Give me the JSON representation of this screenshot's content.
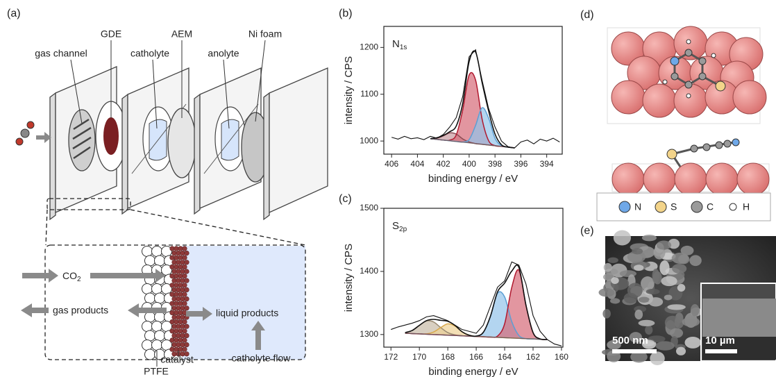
{
  "panel_labels": [
    "(a)",
    "(b)",
    "(c)",
    "(d)",
    "(e)"
  ],
  "diagram": {
    "parts": [
      "gas channel",
      "GDE",
      "catholyte",
      "AEM",
      "anolyte",
      "Ni foam"
    ],
    "inlet": {
      "text": "CO",
      "subscript": "2"
    },
    "gas_products": "gas products",
    "liquid_products": "liquid products",
    "flow": "catholyte flow",
    "catalyst": "catalyst",
    "ptfe": "PTFE"
  },
  "chart_data": [
    {
      "type": "line",
      "annotation": {
        "text": "N",
        "subscript": "1s"
      },
      "x_label": "binding energy / eV",
      "y_label": "intensity / CPS",
      "xlim": [
        406.6,
        392.8
      ],
      "ylim": [
        972,
        1245
      ],
      "xticks": [
        406,
        404,
        402,
        400,
        398,
        396,
        394
      ],
      "yticks": [
        1000,
        1100,
        1200
      ],
      "background": {
        "color": "#6e5a5e",
        "x": [
          403,
          402.5,
          402,
          401.5,
          401,
          400.5,
          400,
          399.5,
          399,
          398.5,
          398,
          397.5,
          397,
          396.5
        ],
        "values": [
          1005,
          1003.5,
          1002,
          1000.5,
          999,
          997.5,
          996,
          994.5,
          993,
          991.5,
          990,
          988.5,
          987,
          985.5
        ]
      },
      "series": [
        {
          "color": "#8a4a52",
          "fill": "#c79aa0",
          "x": [
            403,
            402.5,
            402,
            401.5,
            401,
            400.5,
            400,
            399.5,
            399,
            398.5,
            398,
            397.5,
            397,
            396.5
          ],
          "values": [
            1005,
            1006,
            1011,
            1017.5,
            1015,
            1004.5,
            998,
            994.5,
            993,
            991.5,
            990,
            988.5,
            987,
            985.5
          ]
        },
        {
          "color": "#b0182e",
          "fill": "#d56a78",
          "x": [
            403,
            402.5,
            402,
            401.5,
            401,
            400.5,
            400,
            399.5,
            399,
            398.5,
            398,
            397.5,
            397,
            396.5
          ],
          "values": [
            1005,
            1003.5,
            1002,
            1002,
            1013,
            1066,
            1141,
            1130,
            1047,
            1001,
            990,
            988.5,
            987,
            985.5
          ]
        },
        {
          "color": "#5c9fd4",
          "fill": "#93c3ea",
          "x": [
            403,
            402.5,
            402,
            401.5,
            401,
            400.5,
            400,
            399.5,
            399,
            398.5,
            398,
            397.5,
            397,
            396.5
          ],
          "values": [
            1005,
            1003.5,
            1002,
            1000.5,
            999,
            998,
            1003,
            1033.5,
            1071,
            1049.5,
            1006,
            990,
            987,
            985.5
          ]
        },
        {
          "color": "#111111",
          "smooth": true,
          "x": [
            403,
            402.5,
            402,
            401.5,
            401,
            400.5,
            400,
            399.5,
            399,
            398.5,
            398,
            397.5,
            397,
            396.5
          ],
          "values": [
            1005,
            1007,
            1012,
            1020,
            1032,
            1080,
            1170,
            1190,
            1125,
            1065,
            1015,
            992,
            987,
            985.5
          ]
        },
        {
          "color": "#111111",
          "x": [
            406,
            405.5,
            405,
            404.5,
            404,
            403.5,
            403,
            402.5,
            402,
            401.5,
            401,
            400.5,
            400,
            399.5,
            399,
            398.5,
            398,
            397.5,
            397,
            396.5,
            396,
            395.5,
            395,
            394.5,
            394,
            393.5,
            393
          ],
          "values": [
            1008,
            1004,
            1010,
            1005,
            1007,
            1003,
            1010,
            1006,
            1014,
            1030,
            1050,
            1095,
            1180,
            1195,
            1130,
            1070,
            1030,
            1000,
            988,
            985,
            998,
            1002,
            994,
            1004,
            1000,
            1006,
            998
          ]
        }
      ]
    },
    {
      "type": "line",
      "annotation": {
        "text": "S",
        "subscript": "2p"
      },
      "x_label": "binding energy / eV",
      "y_label": "intensity / CPS",
      "xlim": [
        172.5,
        159.9
      ],
      "ylim": [
        1280,
        1500
      ],
      "xticks": [
        172,
        170,
        168,
        166,
        164,
        162,
        160
      ],
      "yticks": [
        1300,
        1400,
        1500
      ],
      "background": {
        "color": "#6e5a5e",
        "x": [
          171,
          170.5,
          170,
          169.5,
          169,
          168.5,
          168,
          167.5,
          167,
          166.5,
          166,
          165.5,
          165,
          164.5,
          164,
          163.5,
          163,
          162.5,
          162,
          161.5,
          161
        ],
        "values": [
          1302,
          1301.5,
          1301,
          1300.5,
          1300,
          1299.5,
          1299,
          1298.5,
          1298,
          1297.5,
          1297,
          1296.5,
          1296,
          1295.5,
          1295,
          1294.5,
          1294,
          1293.5,
          1293,
          1292.5,
          1292
        ]
      },
      "series": [
        {
          "color": "#9a8a72",
          "fill": "#c8bba6",
          "x": [
            171,
            170.5,
            170,
            169.5,
            169,
            168.5,
            168,
            167.5,
            167,
            166.5,
            166,
            165.5,
            165,
            164.5,
            164,
            163.5,
            163,
            162.5,
            162,
            161.5,
            161
          ],
          "values": [
            1303,
            1306.5,
            1314.5,
            1321.5,
            1320,
            1311,
            1303,
            1299.5,
            1298,
            1297.5,
            1297,
            1296.5,
            1296,
            1295.5,
            1295,
            1294.5,
            1294,
            1293.5,
            1293,
            1292.5,
            1292
          ]
        },
        {
          "color": "#d9a94c",
          "fill": "#eed196",
          "x": [
            171,
            170.5,
            170,
            169.5,
            169,
            168.5,
            168,
            167.5,
            167,
            166.5,
            166,
            165.5,
            165,
            164.5,
            164,
            163.5,
            163,
            162.5,
            162,
            161.5,
            161
          ],
          "values": [
            1302,
            1301.5,
            1301,
            1301,
            1304,
            1311,
            1317,
            1313.5,
            1304.5,
            1299,
            1297,
            1296.5,
            1296,
            1295.5,
            1295,
            1294.5,
            1294,
            1293.5,
            1293,
            1292.5,
            1292
          ]
        },
        {
          "color": "#5c9fd4",
          "fill": "#93c3ea",
          "x": [
            171,
            170.5,
            170,
            169.5,
            169,
            168.5,
            168,
            167.5,
            167,
            166.5,
            166,
            165.5,
            165,
            164.5,
            164,
            163.5,
            163,
            162.5,
            162,
            161.5,
            161
          ],
          "values": [
            1302,
            1301.5,
            1301,
            1300.5,
            1300,
            1299.5,
            1299,
            1298.5,
            1298,
            1297.5,
            1297.5,
            1303.5,
            1329,
            1365.5,
            1359.5,
            1320.5,
            1298.5,
            1293.5,
            1293,
            1292.5,
            1292
          ]
        },
        {
          "color": "#b0182e",
          "fill": "#d56a78",
          "x": [
            171,
            170.5,
            170,
            169.5,
            169,
            168.5,
            168,
            167.5,
            167,
            166.5,
            166,
            165.5,
            165,
            164.5,
            164,
            163.5,
            163,
            162.5,
            162,
            161.5,
            161
          ],
          "values": [
            1302,
            1301.5,
            1301,
            1300.5,
            1300,
            1299.5,
            1299,
            1298.5,
            1298,
            1297.5,
            1297,
            1296.5,
            1296,
            1297.5,
            1317,
            1374.5,
            1402,
            1346.5,
            1303,
            1293,
            1292
          ]
        },
        {
          "color": "#111111",
          "smooth": true,
          "x": [
            171,
            170.5,
            170,
            169.5,
            169,
            168.5,
            168,
            167.5,
            167,
            166.5,
            166,
            165.5,
            165,
            164.5,
            164,
            163.5,
            163,
            162.5,
            162,
            161.5,
            161
          ],
          "values": [
            1303,
            1306.5,
            1314.5,
            1322,
            1324,
            1322.5,
            1321,
            1314.5,
            1304.5,
            1299,
            1297.5,
            1303.5,
            1329,
            1367.5,
            1381.5,
            1400.5,
            1406.5,
            1346.5,
            1303,
            1293,
            1292
          ]
        },
        {
          "color": "#111111",
          "x": [
            172,
            171.5,
            171,
            170.5,
            170,
            169.5,
            169,
            168.5,
            168,
            167.5,
            167,
            166.5,
            166,
            165.5,
            165,
            164.5,
            164,
            163.5,
            163,
            162.5,
            162,
            161.5,
            161,
            160.5,
            160
          ],
          "values": [
            1308,
            1312,
            1315,
            1318,
            1322,
            1328,
            1330,
            1326,
            1322,
            1315,
            1308,
            1305,
            1302,
            1315,
            1345,
            1375,
            1385,
            1415,
            1410,
            1380,
            1330,
            1305,
            1292,
            1285,
            1282
          ]
        }
      ]
    }
  ],
  "atoms": [
    {
      "name": "N",
      "color": "#6fa8e8"
    },
    {
      "name": "S",
      "color": "#f3d48a"
    },
    {
      "name": "C",
      "color": "#9a9a9a"
    },
    {
      "name": "H",
      "color": "#ffffff"
    }
  ],
  "scale_bars": [
    "500 nm",
    "10 µm"
  ]
}
